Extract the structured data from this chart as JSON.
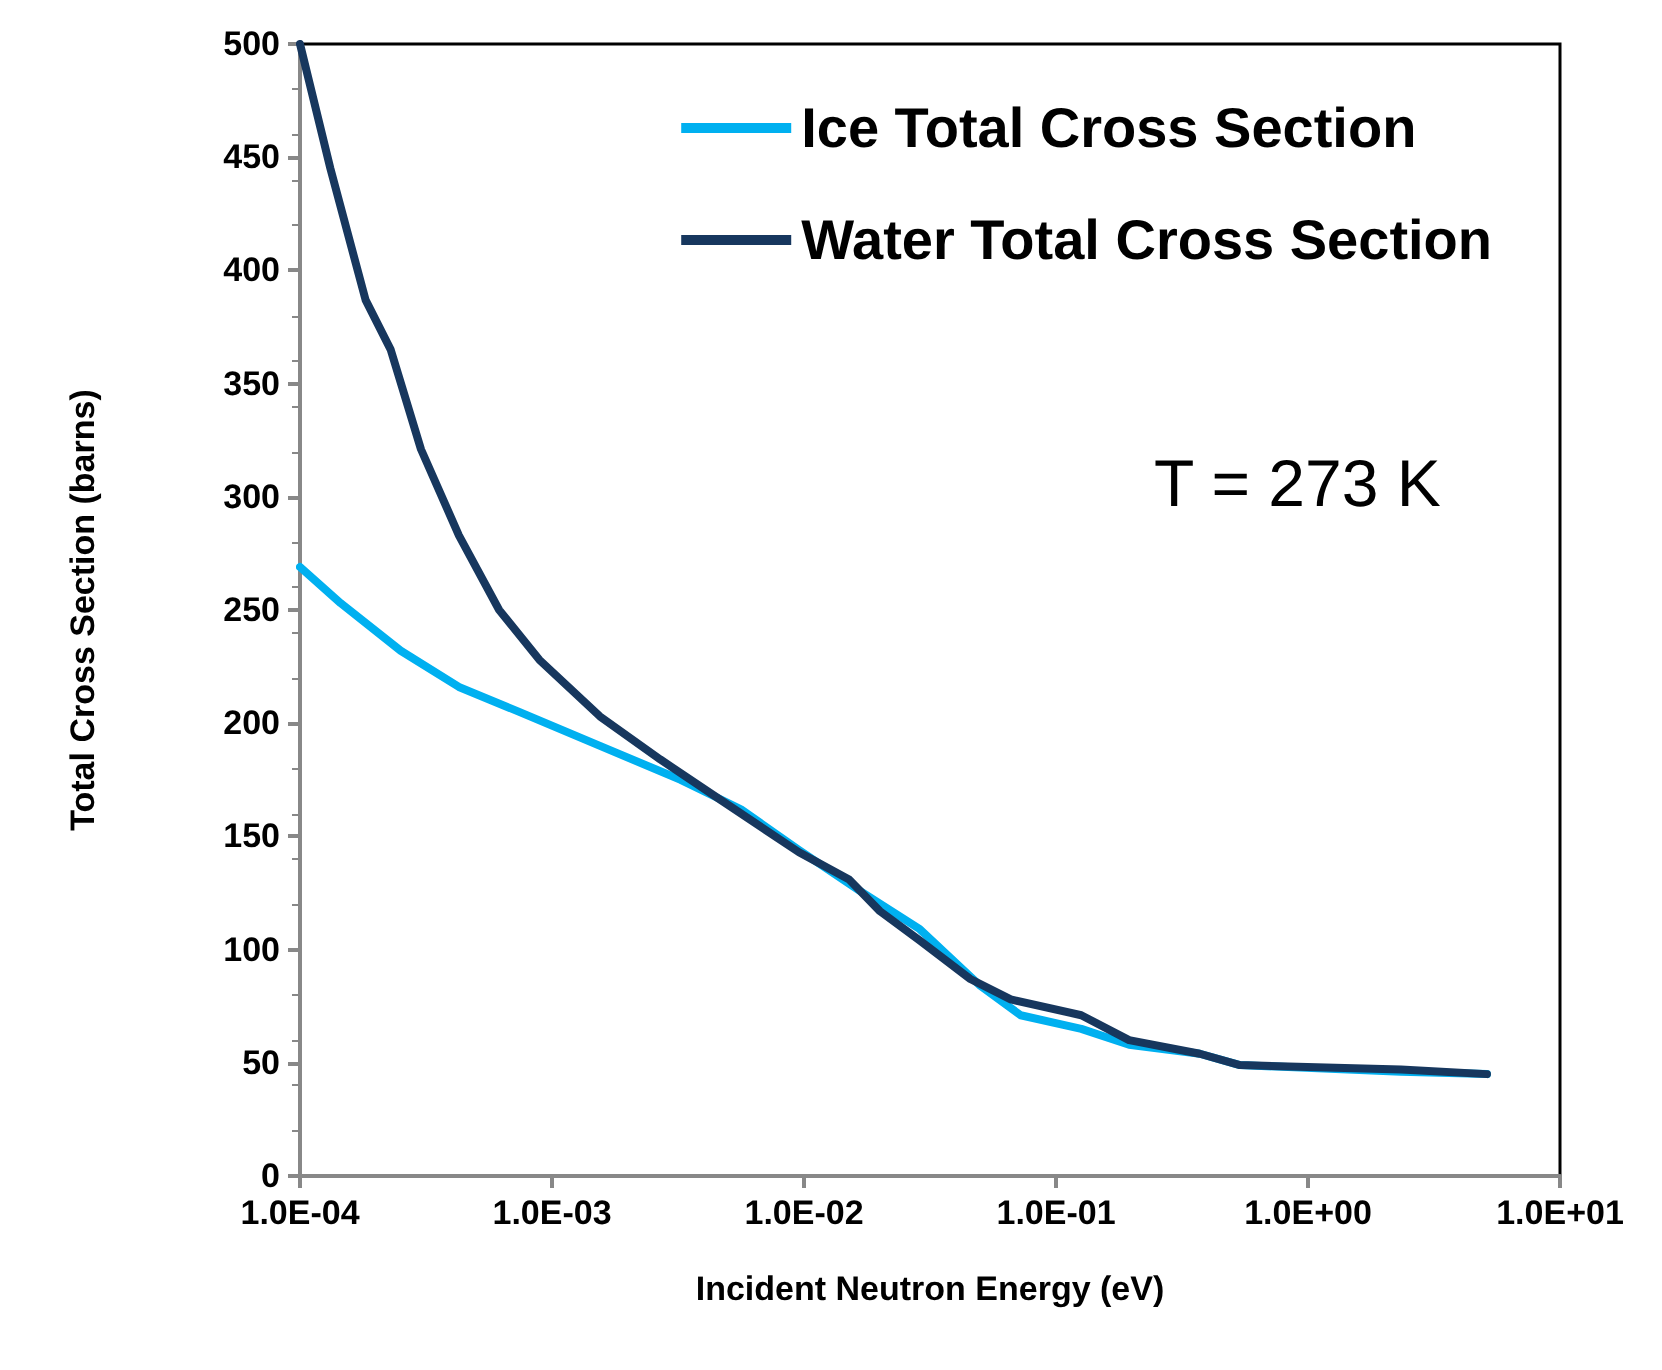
{
  "chart_data": {
    "type": "line",
    "xlabel": "Incident Neutron Energy (eV)",
    "ylabel": "Total Cross Section (barns)",
    "annotations": [
      "T = 273 K"
    ],
    "log": "x",
    "grid": false,
    "legend": "top right",
    "marker": "none",
    "line_style": "solid",
    "xlim": [
      0.0001,
      10
    ],
    "ylim": [
      0,
      500
    ],
    "xticks": [
      {
        "value": 0.0001,
        "label": "1.0E-04"
      },
      {
        "value": 0.001,
        "label": "1.0E-03"
      },
      {
        "value": 0.01,
        "label": "1.0E-02"
      },
      {
        "value": 0.1,
        "label": "1.0E-01"
      },
      {
        "value": 1,
        "label": "1.0E+00"
      },
      {
        "value": 10,
        "label": "1.0E+01"
      }
    ],
    "yticks": [
      0,
      50,
      100,
      150,
      200,
      250,
      300,
      350,
      400,
      450,
      500
    ],
    "series": [
      {
        "name": "Ice Total Cross Section",
        "color": "#00b0f0",
        "x": [
          0.0001,
          0.000145,
          0.000251,
          0.000427,
          0.000741,
          0.00155,
          0.00324,
          0.00562,
          0.00955,
          0.0166,
          0.0288,
          0.0501,
          0.0724,
          0.126,
          0.195,
          0.372,
          0.537,
          2.34,
          5.13
        ],
        "values": [
          269,
          253,
          232,
          216,
          205,
          190,
          175,
          162,
          144,
          126,
          109,
          84,
          71,
          65,
          58,
          54,
          49,
          46,
          45
        ]
      },
      {
        "name": "Water Total Cross Section",
        "color": "#17375e",
        "x": [
          0.0001,
          0.000132,
          0.000182,
          0.000229,
          0.000302,
          0.000427,
          0.000617,
          0.000891,
          0.00155,
          0.00269,
          0.00468,
          0.00955,
          0.0151,
          0.02,
          0.0288,
          0.0457,
          0.0661,
          0.126,
          0.195,
          0.372,
          0.537,
          2.34,
          5.13
        ],
        "values": [
          500,
          445,
          387,
          365,
          321,
          283,
          250,
          228,
          203,
          184,
          166,
          143,
          131,
          117,
          104,
          87,
          78,
          71,
          60,
          54,
          49,
          47,
          45
        ]
      }
    ]
  }
}
